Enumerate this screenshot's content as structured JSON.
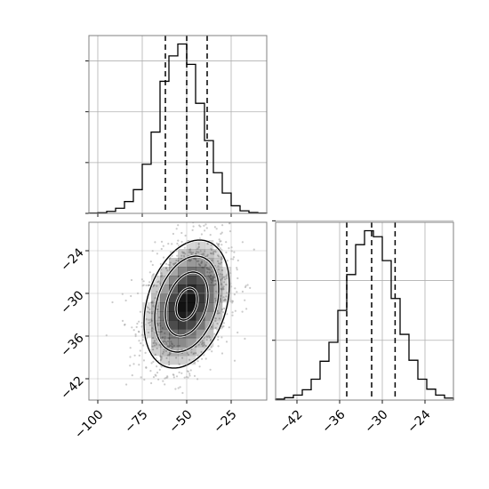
{
  "chart_data": [
    {
      "panel": "marginal-x",
      "type": "histogram",
      "xlim": [
        -105,
        -5
      ],
      "bins": [
        -105,
        -100,
        -95,
        -90,
        -85,
        -80,
        -75,
        -70,
        -65,
        -60,
        -55,
        -50,
        -45,
        -40,
        -35,
        -30,
        -25,
        -20,
        -15,
        -10,
        -5
      ],
      "counts": [
        0.2,
        0.4,
        1.2,
        3.0,
        7.0,
        14,
        29,
        48,
        78,
        93,
        100,
        88,
        65,
        43,
        24,
        12,
        4.5,
        1.5,
        0.5,
        0.2
      ],
      "quantiles": [
        -62,
        -50,
        -38.5
      ],
      "grid": true,
      "ytick_labels": []
    },
    {
      "panel": "joint",
      "type": "density-2d",
      "x_center": -50,
      "y_center": -31.5,
      "x_sd": 12,
      "y_sd": 4.5,
      "correlation": 0.3,
      "xlim": [
        -105,
        -5
      ],
      "ylim": [
        -45,
        -20
      ],
      "xticks": [
        -100,
        -75,
        -50,
        -25
      ],
      "xtick_labels": [
        "−100",
        "−75",
        "−50",
        "−25"
      ],
      "yticks": [
        -24,
        -30,
        -36,
        -42
      ],
      "ytick_labels": [
        "−24",
        "−30",
        "−36",
        "−42"
      ],
      "contour_levels_sigma": [
        0.5,
        1.0,
        1.5,
        2.0
      ],
      "grid": true
    },
    {
      "panel": "marginal-y",
      "type": "histogram",
      "xlim": [
        -45,
        -20
      ],
      "bins": [
        -45,
        -43.75,
        -42.5,
        -41.25,
        -40,
        -38.75,
        -37.5,
        -36.25,
        -35,
        -33.75,
        -32.5,
        -31.25,
        -30,
        -28.75,
        -27.5,
        -26.25,
        -25,
        -23.75,
        -22.5,
        -21.25,
        -20
      ],
      "counts": [
        0.5,
        1.2,
        2.5,
        5.2,
        10.5,
        19.5,
        29,
        45,
        63,
        78,
        85,
        82,
        70,
        51,
        33,
        20,
        10.5,
        5.5,
        2.5,
        1.0
      ],
      "quantiles": [
        -35.0,
        -31.5,
        -28.2
      ],
      "xticks": [
        -42,
        -36,
        -30,
        -24
      ],
      "xtick_labels": [
        "−42",
        "−36",
        "−30",
        "−24"
      ],
      "grid": true,
      "ytick_labels": []
    }
  ],
  "colors": {
    "frame": "#808080",
    "grid": "#b0b0b0",
    "line": "#000000",
    "density": "#000000",
    "scatter": "#a0a0a0"
  }
}
